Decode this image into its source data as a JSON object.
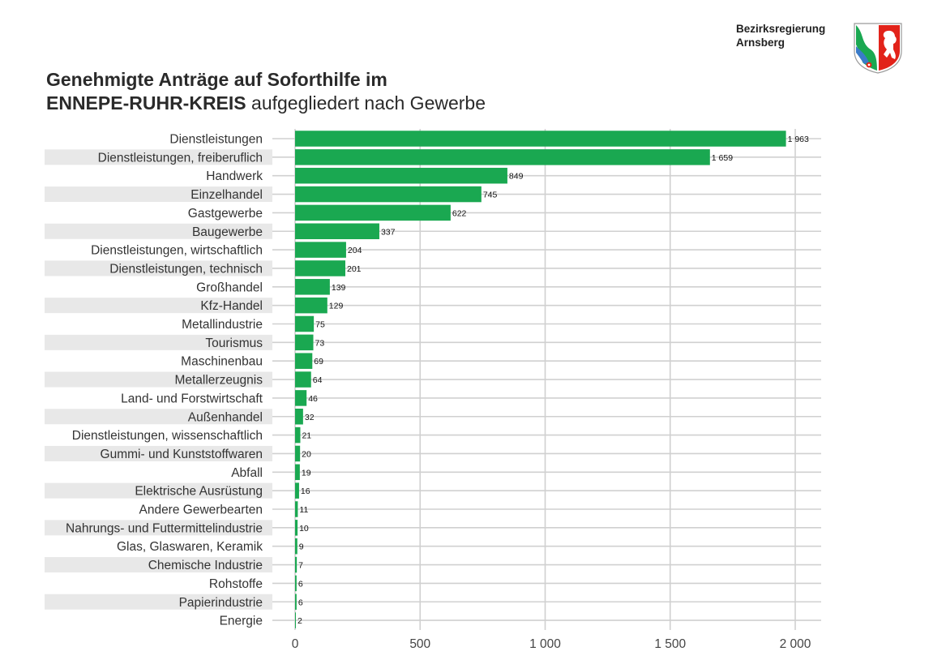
{
  "header": {
    "org_line1": "Bezirksregierung",
    "org_line2": "Arnsberg",
    "title_line1": "Genehmigte Anträge auf Soforthilfe im",
    "title_line2_bold": "ENNEPE-RUHR-KREIS",
    "title_line2_rest": " aufgegliedert nach Gewerbe"
  },
  "colors": {
    "bar": "#1aa851",
    "stripe": "#e8e8e8",
    "grid": "#d0d0d0"
  },
  "chart_data": {
    "type": "bar",
    "orientation": "horizontal",
    "categories": [
      "Dienstleistungen",
      "Dienstleistungen, freiberuflich",
      "Handwerk",
      "Einzelhandel",
      "Gastgewerbe",
      "Baugewerbe",
      "Dienstleistungen, wirtschaftlich",
      "Dienstleistungen, technisch",
      "Großhandel",
      "Kfz-Handel",
      "Metallindustrie",
      "Tourismus",
      "Maschinenbau",
      "Metallerzeugnis",
      "Land- und Forstwirtschaft",
      "Außenhandel",
      "Dienstleistungen, wissenschaftlich",
      "Gummi- und Kunststoffwaren",
      "Abfall",
      "Elektrische Ausrüstung",
      "Andere Gewerbearten",
      "Nahrungs- und Futtermittelindustrie",
      "Glas, Glaswaren, Keramik",
      "Chemische Industrie",
      "Rohstoffe",
      "Papierindustrie",
      "Energie"
    ],
    "values": [
      1963,
      1659,
      849,
      745,
      622,
      337,
      204,
      201,
      139,
      129,
      75,
      73,
      69,
      64,
      46,
      32,
      21,
      20,
      19,
      16,
      11,
      10,
      9,
      7,
      6,
      6,
      2
    ],
    "value_labels": [
      "1 963",
      "1 659",
      "849",
      "745",
      "622",
      "337",
      "204",
      "201",
      "139",
      "129",
      "75",
      "73",
      "69",
      "64",
      "46",
      "32",
      "21",
      "20",
      "19",
      "16",
      "11",
      "10",
      "9",
      "7",
      "6",
      "6",
      "2"
    ],
    "xlim": [
      0,
      2000
    ],
    "xticks": [
      0,
      500,
      1000,
      1500,
      2000
    ],
    "xtick_labels": [
      "0",
      "500",
      "1 000",
      "1 500",
      "2 000"
    ],
    "grid": true
  }
}
